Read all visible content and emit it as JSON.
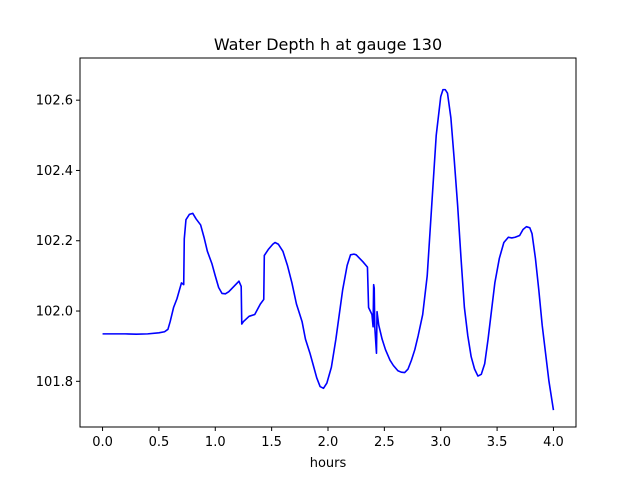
{
  "chart_data": {
    "type": "line",
    "title": "Water Depth h at gauge 130",
    "xlabel": "hours",
    "ylabel": "",
    "xlim": [
      -0.2,
      4.2
    ],
    "ylim": [
      101.67,
      102.72
    ],
    "xticks": [
      0.0,
      0.5,
      1.0,
      1.5,
      2.0,
      2.5,
      3.0,
      3.5,
      4.0
    ],
    "xtick_labels": [
      "0.0",
      "0.5",
      "1.0",
      "1.5",
      "2.0",
      "2.5",
      "3.0",
      "3.5",
      "4.0"
    ],
    "yticks": [
      101.8,
      102.0,
      102.2,
      102.4,
      102.6
    ],
    "ytick_labels": [
      "101.8",
      "102.0",
      "102.2",
      "102.4",
      "102.6"
    ],
    "grid": false,
    "series": [
      {
        "color": "#0000ff",
        "x": [
          0.0,
          0.1,
          0.2,
          0.3,
          0.4,
          0.5,
          0.55,
          0.58,
          0.6,
          0.63,
          0.66,
          0.7,
          0.72,
          0.725,
          0.74,
          0.77,
          0.8,
          0.83,
          0.87,
          0.9,
          0.93,
          0.97,
          1.0,
          1.03,
          1.06,
          1.09,
          1.12,
          1.15,
          1.18,
          1.21,
          1.23,
          1.235,
          1.25,
          1.3,
          1.35,
          1.4,
          1.43,
          1.435,
          1.47,
          1.51,
          1.53,
          1.56,
          1.6,
          1.64,
          1.68,
          1.72,
          1.74,
          1.77,
          1.8,
          1.84,
          1.87,
          1.9,
          1.93,
          1.96,
          1.99,
          2.03,
          2.07,
          2.1,
          2.13,
          2.17,
          2.2,
          2.23,
          2.25,
          2.28,
          2.31,
          2.35,
          2.36,
          2.39,
          2.4,
          2.405,
          2.41,
          2.415,
          2.43,
          2.435,
          2.45,
          2.48,
          2.51,
          2.55,
          2.58,
          2.62,
          2.65,
          2.68,
          2.71,
          2.74,
          2.77,
          2.8,
          2.84,
          2.88,
          2.92,
          2.96,
          3.0,
          3.02,
          3.04,
          3.06,
          3.09,
          3.12,
          3.15,
          3.18,
          3.21,
          3.24,
          3.27,
          3.3,
          3.33,
          3.36,
          3.39,
          3.42,
          3.45,
          3.48,
          3.52,
          3.56,
          3.6,
          3.63,
          3.66,
          3.7,
          3.73,
          3.76,
          3.79,
          3.81,
          3.84,
          3.87,
          3.9,
          3.93,
          3.96,
          4.0
        ],
        "y": [
          101.935,
          101.935,
          101.935,
          101.934,
          101.935,
          101.938,
          101.941,
          101.948,
          101.97,
          102.01,
          102.035,
          102.08,
          102.075,
          102.205,
          102.26,
          102.275,
          102.278,
          102.262,
          102.245,
          102.21,
          102.17,
          102.135,
          102.1,
          102.067,
          102.05,
          102.049,
          102.055,
          102.065,
          102.075,
          102.085,
          102.07,
          101.963,
          101.97,
          101.985,
          101.99,
          102.02,
          102.033,
          102.158,
          102.175,
          102.19,
          102.195,
          102.19,
          102.17,
          102.13,
          102.08,
          102.02,
          102.0,
          101.97,
          101.92,
          101.88,
          101.845,
          101.81,
          101.785,
          101.78,
          101.795,
          101.84,
          101.92,
          101.99,
          102.06,
          102.13,
          102.16,
          102.162,
          102.16,
          102.15,
          102.14,
          102.125,
          102.01,
          101.99,
          101.955,
          102.075,
          102.065,
          101.955,
          101.88,
          101.998,
          101.96,
          101.92,
          101.89,
          101.86,
          101.845,
          101.83,
          101.826,
          101.825,
          101.835,
          101.86,
          101.89,
          101.93,
          101.99,
          102.1,
          102.3,
          102.5,
          102.61,
          102.63,
          102.63,
          102.62,
          102.55,
          102.43,
          102.3,
          102.15,
          102.01,
          101.93,
          101.87,
          101.835,
          101.815,
          101.82,
          101.85,
          101.92,
          102.0,
          102.08,
          102.15,
          102.195,
          102.21,
          102.208,
          102.21,
          102.215,
          102.232,
          102.24,
          102.237,
          102.22,
          102.15,
          102.06,
          101.96,
          101.88,
          101.8,
          101.718
        ]
      }
    ]
  }
}
